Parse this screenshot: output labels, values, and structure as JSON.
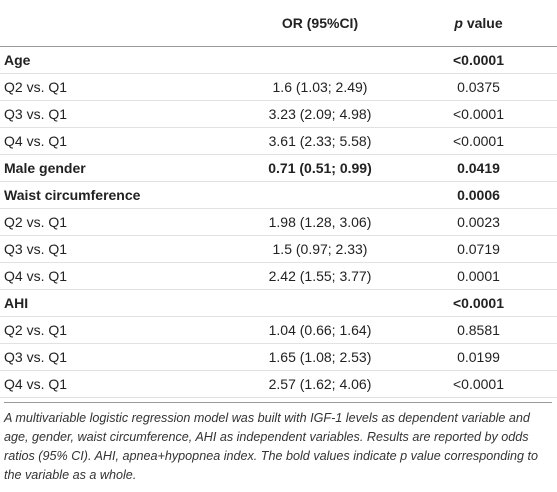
{
  "header": {
    "or": "OR (95%CI)",
    "p_italic": "p",
    "p_rest": "value"
  },
  "rows": [
    {
      "label": "Age",
      "or": "",
      "p": "<0.0001",
      "bold": true
    },
    {
      "label": "Q2 vs. Q1",
      "or": "1.6 (1.03; 2.49)",
      "p": "0.0375",
      "bold": false
    },
    {
      "label": "Q3 vs. Q1",
      "or": "3.23 (2.09; 4.98)",
      "p": "<0.0001",
      "bold": false
    },
    {
      "label": "Q4 vs. Q1",
      "or": "3.61 (2.33; 5.58)",
      "p": "<0.0001",
      "bold": false
    },
    {
      "label": "Male gender",
      "or": "0.71 (0.51; 0.99)",
      "p": "0.0419",
      "bold": true
    },
    {
      "label": "Waist circumference",
      "or": "",
      "p": "0.0006",
      "bold": true
    },
    {
      "label": "Q2 vs. Q1",
      "or": "1.98 (1.28, 3.06)",
      "p": "0.0023",
      "bold": false
    },
    {
      "label": "Q3 vs. Q1",
      "or": "1.5 (0.97; 2.33)",
      "p": "0.0719",
      "bold": false
    },
    {
      "label": "Q4 vs. Q1",
      "or": "2.42 (1.55; 3.77)",
      "p": "0.0001",
      "bold": false
    },
    {
      "label": "AHI",
      "or": "",
      "p": "<0.0001",
      "bold": true
    },
    {
      "label": "Q2 vs. Q1",
      "or": "1.04 (0.66; 1.64)",
      "p": "0.8581",
      "bold": false
    },
    {
      "label": "Q3 vs. Q1",
      "or": "1.65 (1.08; 2.53)",
      "p": "0.0199",
      "bold": false
    },
    {
      "label": "Q4 vs. Q1",
      "or": "2.57 (1.62; 4.06)",
      "p": "<0.0001",
      "bold": false
    }
  ],
  "caption": "A multivariable logistic regression model was built with IGF-1 levels as dependent variable and age, gender, waist circumference, AHI as independent variables. Results are reported by odds ratios (95% CI). AHI, apnea+hypopnea index. The bold values indicate p value corresponding to the variable as a whole."
}
